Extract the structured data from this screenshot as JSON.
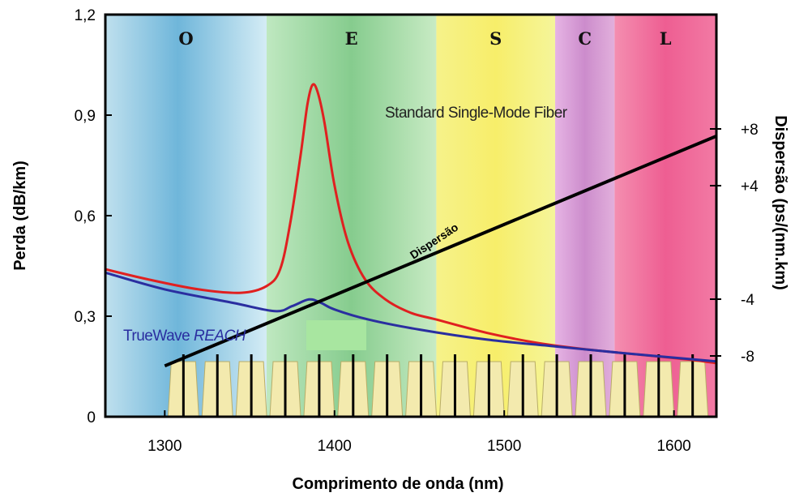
{
  "chart_data": {
    "type": "line",
    "xlabel": "Comprimento de onda (nm)",
    "ylabel": "Perda (dB/km)",
    "y2label": "Dispersão (ps/(nm.km)",
    "xlim": [
      1265,
      1625
    ],
    "ylim": [
      0,
      1.2
    ],
    "xticks": [
      "1300",
      "1400",
      "1500",
      "1600"
    ],
    "yticks": [
      "0",
      "0,3",
      "0,6",
      "0,9",
      "1,2"
    ],
    "y2ticks": [
      "-8",
      "-4",
      "+4",
      "+8"
    ],
    "bands": [
      {
        "name": "O",
        "start": 1265,
        "end": 1360,
        "color": "#7fbfe0"
      },
      {
        "name": "E",
        "start": 1360,
        "end": 1460,
        "color": "#8fd18f"
      },
      {
        "name": "S",
        "start": 1460,
        "end": 1530,
        "color": "#f6ee78"
      },
      {
        "name": "C",
        "start": 1530,
        "end": 1565,
        "color": "#cf8fd0"
      },
      {
        "name": "L",
        "start": 1565,
        "end": 1625,
        "color": "#f06a9a"
      }
    ],
    "annotations": {
      "ssmf": "Standard Single-Mode Fiber",
      "truewave_prefix": "TrueWave ",
      "truewave_italic": "REACH",
      "dispersion": "Dispersão"
    },
    "series": [
      {
        "color": "#e02020",
        "x": [
          1265,
          1290,
          1320,
          1345,
          1360,
          1368,
          1374,
          1380,
          1384,
          1387,
          1390,
          1394,
          1400,
          1408,
          1418,
          1430,
          1445,
          1460,
          1490,
          1520,
          1550,
          1580,
          1610,
          1625
        ],
        "values": [
          0.44,
          0.41,
          0.38,
          0.37,
          0.39,
          0.44,
          0.58,
          0.78,
          0.93,
          0.99,
          0.97,
          0.88,
          0.69,
          0.52,
          0.41,
          0.35,
          0.31,
          0.29,
          0.25,
          0.22,
          0.2,
          0.185,
          0.17,
          0.16
        ]
      },
      {
        "color": "#2a2ea0",
        "x": [
          1265,
          1300,
          1340,
          1365,
          1375,
          1385,
          1392,
          1400,
          1420,
          1450,
          1490,
          1530,
          1570,
          1625
        ],
        "values": [
          0.43,
          0.38,
          0.34,
          0.315,
          0.33,
          0.35,
          0.34,
          0.32,
          0.29,
          0.26,
          0.23,
          0.21,
          0.19,
          0.165
        ]
      },
      {
        "color": "#000000",
        "x": [
          1300,
          1625
        ],
        "values": [
          -8.7,
          7.5
        ]
      }
    ],
    "channels": {
      "start": 1311,
      "step": 20,
      "count": 16
    }
  }
}
